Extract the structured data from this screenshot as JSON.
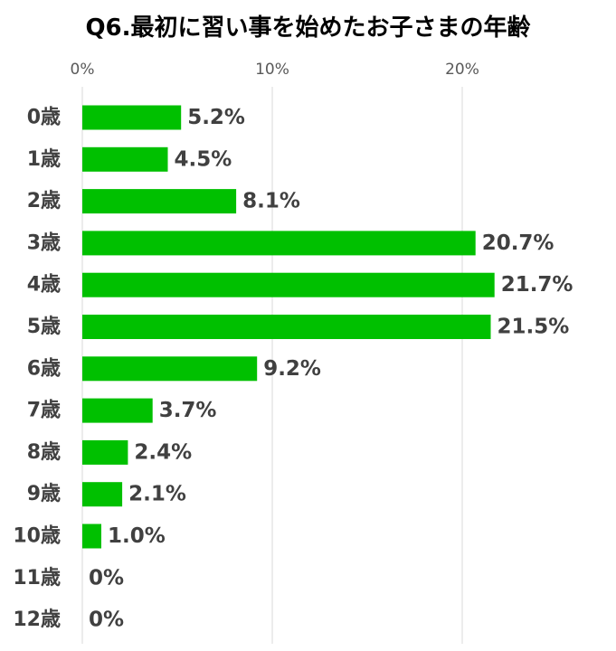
{
  "chart_data": {
    "type": "bar",
    "orientation": "horizontal",
    "title": "Q6.最初に習い事を始めたお子さまの年齢",
    "xlabel": "",
    "ylabel": "",
    "categories": [
      "0歳",
      "1歳",
      "2歳",
      "3歳",
      "4歳",
      "5歳",
      "6歳",
      "7歳",
      "8歳",
      "9歳",
      "10歳",
      "11歳",
      "12歳"
    ],
    "values": [
      5.2,
      4.5,
      8.1,
      20.7,
      21.7,
      21.5,
      9.2,
      3.7,
      2.4,
      2.1,
      1.0,
      0,
      0
    ],
    "data_labels": [
      "5.2%",
      "4.5%",
      "8.1%",
      "20.7%",
      "21.7%",
      "21.5%",
      "9.2%",
      "3.7%",
      "2.4%",
      "2.1%",
      "1.0%",
      "0%",
      "0%"
    ],
    "xlim": [
      0,
      25
    ],
    "ticks": [
      0,
      10,
      20
    ],
    "tick_labels": [
      "0%",
      "10%",
      "20%"
    ],
    "axis_position": "top",
    "grid": true,
    "legend": "none",
    "bar_color": "#00c000",
    "grid_color": "#d9d9d9"
  }
}
